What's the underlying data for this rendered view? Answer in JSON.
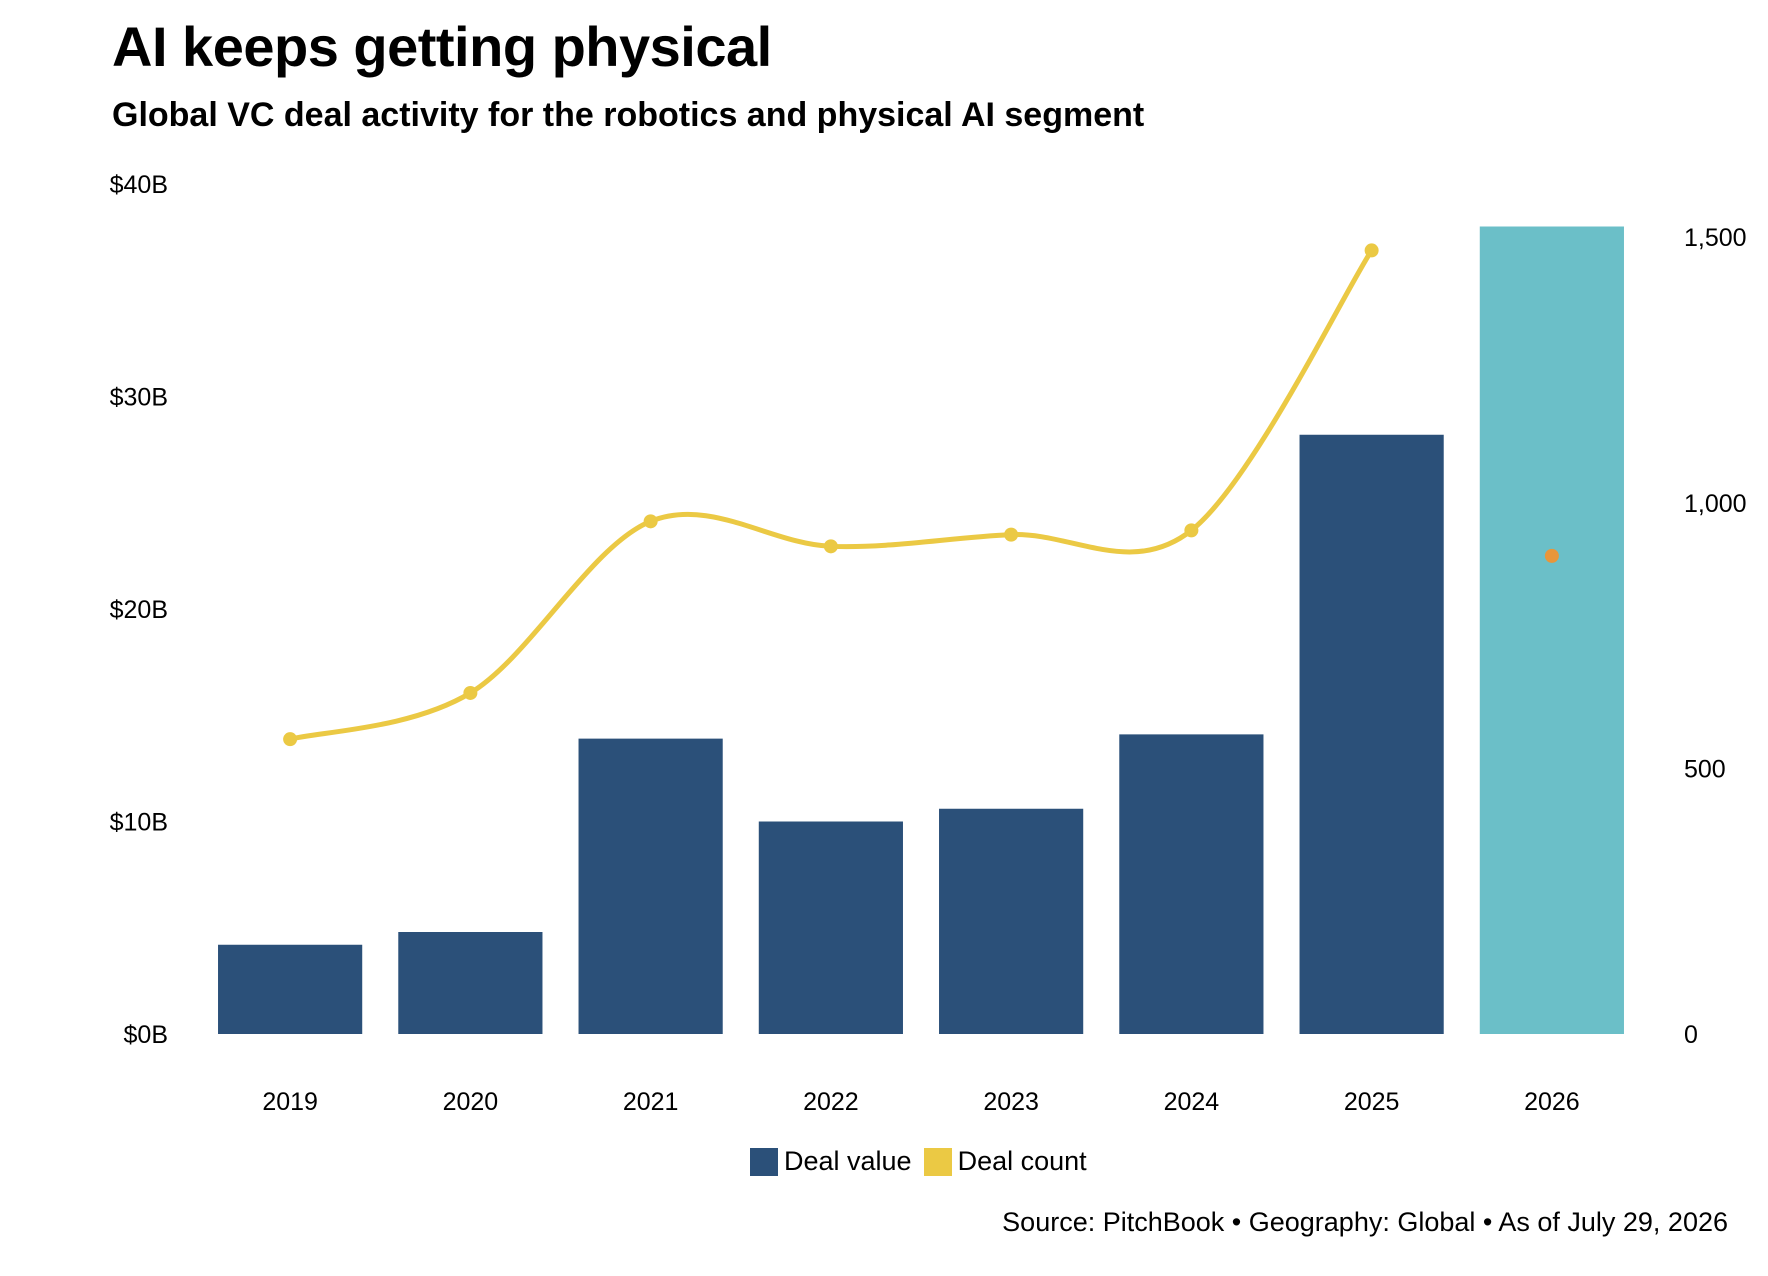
{
  "header": {
    "title": "AI keeps getting physical",
    "subtitle": "Global VC deal activity for the robotics and physical AI segment"
  },
  "footer": {
    "source": "Source: PitchBook • Geography: Global • As of July 29, 2026"
  },
  "legend": {
    "deal_value": "Deal value",
    "deal_count": "Deal count"
  },
  "colors": {
    "deal_value": "#2b5079",
    "deal_value_partial": "#6bbfc8",
    "deal_count": "#ebc944",
    "deal_count_partial": "#e8963a",
    "title_text": "#000000"
  },
  "chart_data": {
    "type": "bar",
    "title": "AI keeps getting physical",
    "subtitle": "Global VC deal activity for the robotics and physical AI segment",
    "categories": [
      "2019",
      "2020",
      "2021",
      "2022",
      "2023",
      "2024",
      "2025",
      "2026"
    ],
    "series": [
      {
        "name": "Deal value",
        "type": "bar",
        "axis": "left",
        "values": [
          4.2,
          4.8,
          13.9,
          10.0,
          10.6,
          14.1,
          28.2,
          38.0
        ]
      },
      {
        "name": "Deal count",
        "type": "line",
        "axis": "right",
        "values": [
          555,
          642,
          965,
          918,
          940,
          948,
          1475,
          900
        ]
      }
    ],
    "highlighted_category": "2026",
    "y_left": {
      "lim": [
        0,
        40
      ],
      "ticks": [
        0,
        10,
        20,
        30,
        40
      ],
      "tick_labels": [
        "$0B",
        "$10B",
        "$20B",
        "$30B",
        "$40B"
      ]
    },
    "y_right": {
      "lim": [
        0,
        1600
      ],
      "ticks": [
        0,
        500,
        1000,
        1500
      ],
      "tick_labels": [
        "0",
        "500",
        "1,000",
        "1,500"
      ]
    },
    "grid": false,
    "legend_position": "bottom-center"
  }
}
